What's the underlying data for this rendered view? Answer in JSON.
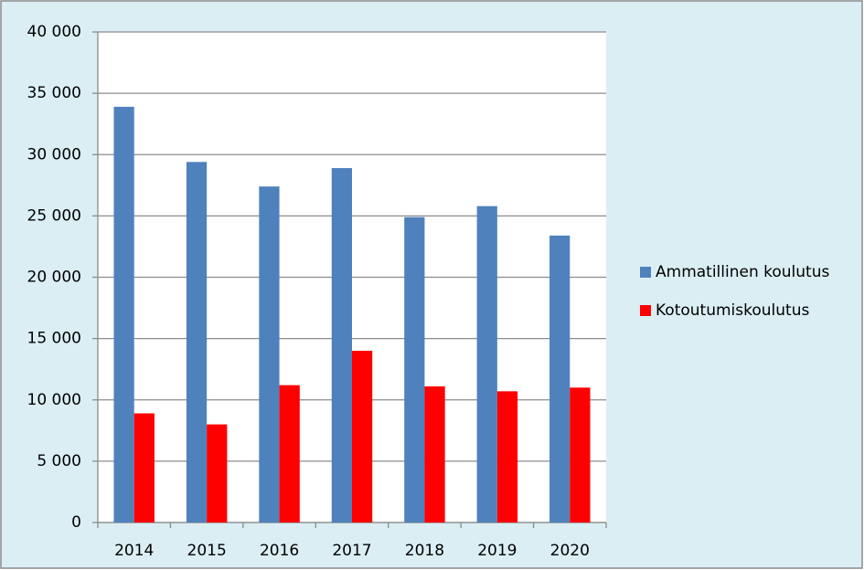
{
  "chart_data": {
    "type": "bar",
    "categories": [
      "2014",
      "2015",
      "2016",
      "2017",
      "2018",
      "2019",
      "2020"
    ],
    "series": [
      {
        "name": "Ammatillinen koulutus",
        "color": "#4f81bd",
        "values": [
          33900,
          29400,
          27400,
          28900,
          24900,
          25800,
          23400
        ]
      },
      {
        "name": "Kotoutumiskoulutus",
        "color": "#ff0000",
        "values": [
          8900,
          8000,
          11200,
          14000,
          11100,
          10700,
          11000
        ]
      }
    ],
    "ylim": [
      0,
      40000
    ],
    "yticks": [
      0,
      {
        "value": 5000,
        "label": "5 000"
      },
      {
        "value": 10000,
        "label": "10 000"
      },
      {
        "value": 15000,
        "label": "15 000"
      },
      {
        "value": 20000,
        "label": "20 000"
      },
      {
        "value": 25000,
        "label": "25 000"
      },
      {
        "value": 30000,
        "label": "30 000"
      },
      {
        "value": 35000,
        "label": "35 000"
      },
      {
        "value": 40000,
        "label": "40 000"
      }
    ],
    "grid": true,
    "legend": "right"
  }
}
